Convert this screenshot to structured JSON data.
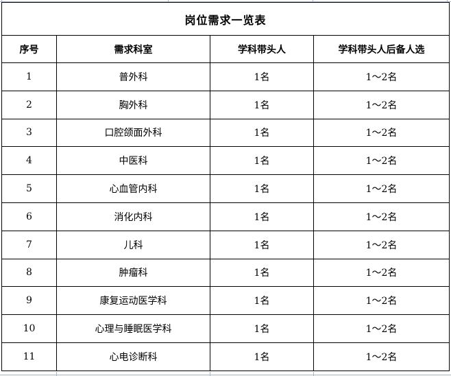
{
  "title": "岗位需求一览表",
  "table": {
    "headers": [
      "序号",
      "需求科室",
      "学科带头人",
      "学科带头人后备人选"
    ],
    "rows": [
      [
        "1",
        "普外科",
        "1名",
        "1～2名"
      ],
      [
        "2",
        "胸外科",
        "1名",
        "1～2名"
      ],
      [
        "3",
        "口腔颌面外科",
        "1名",
        "1～2名"
      ],
      [
        "4",
        "中医科",
        "1名",
        "1～2名"
      ],
      [
        "5",
        "心血管内科",
        "1名",
        "1～2名"
      ],
      [
        "6",
        "消化内科",
        "1名",
        "1～2名"
      ],
      [
        "7",
        "儿科",
        "1名",
        "1～2名"
      ],
      [
        "8",
        "肿瘤科",
        "1名",
        "1～2名"
      ],
      [
        "9",
        "康复运动医学科",
        "1名",
        "1～2名"
      ],
      [
        "10",
        "心理与睡眠医学科",
        "1名",
        "1～2名"
      ],
      [
        "11",
        "心电诊断科",
        "1名",
        "1～2名"
      ]
    ]
  },
  "colors": {
    "border": "#000000",
    "gridline": "#aab3c3",
    "background": "#ffffff",
    "text": "#000000"
  }
}
